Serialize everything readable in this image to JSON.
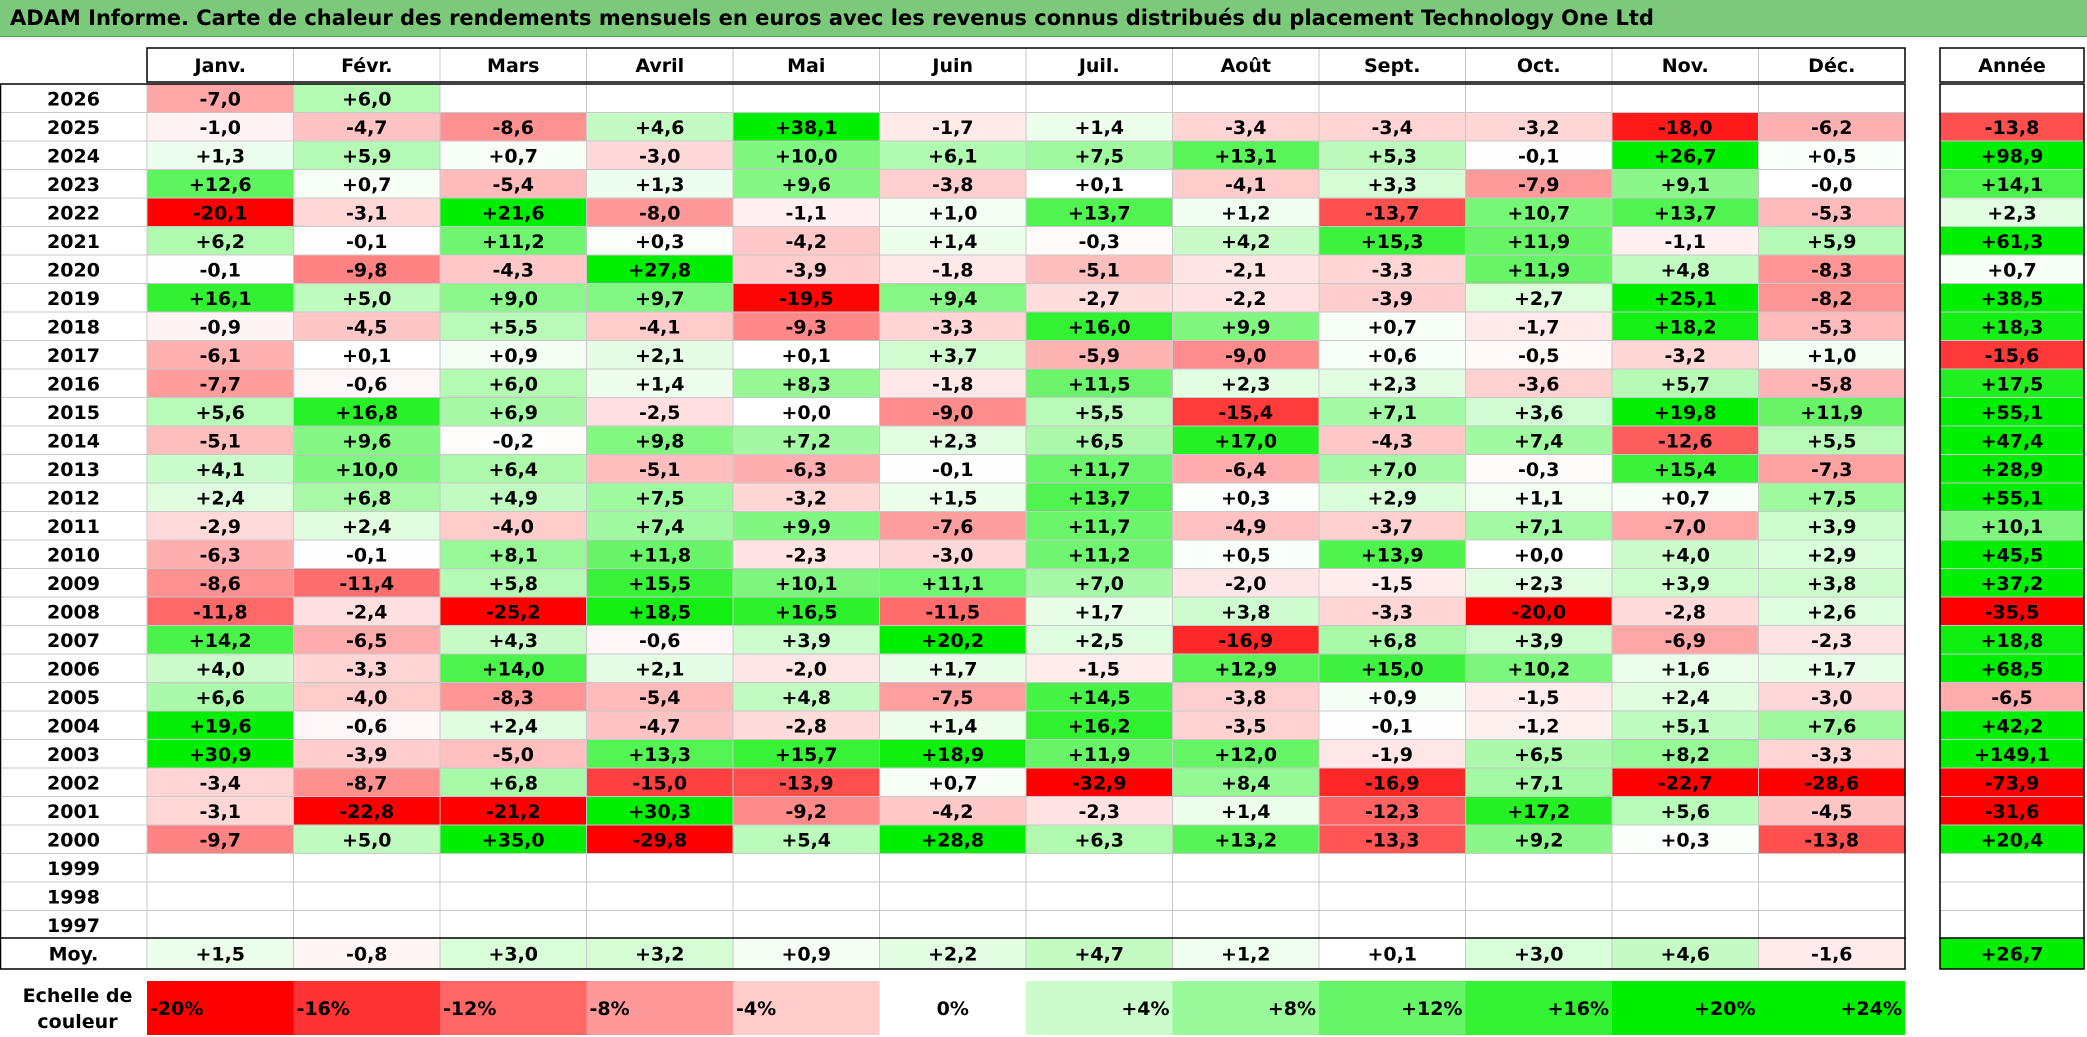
{
  "title": "ADAM Informe. Carte de chaleur des rendements mensuels en euros avec les revenus connus distribués du placement Technology One Ltd",
  "colors": {
    "title_bg": "#7cc97c",
    "max_red": "#ff0000",
    "max_green": "#00ee00",
    "neutral": "#ffffff"
  },
  "chart_data": {
    "type": "heatmap",
    "title": "ADAM Informe. Carte de chaleur des rendements mensuels en euros avec les revenus connus distribués du placement Technology One Ltd",
    "columns": [
      "Janv.",
      "Févr.",
      "Mars",
      "Avril",
      "Mai",
      "Juin",
      "Juil.",
      "Août",
      "Sept.",
      "Oct.",
      "Nov.",
      "Déc."
    ],
    "year_header": "Année",
    "rows": [
      {
        "year": "2026",
        "months": [
          "-7,0",
          "+6,0",
          "",
          "",
          "",
          "",
          "",
          "",
          "",
          "",
          "",
          ""
        ],
        "annual": ""
      },
      {
        "year": "2025",
        "months": [
          "-1,0",
          "-4,7",
          "-8,6",
          "+4,6",
          "+38,1",
          "-1,7",
          "+1,4",
          "-3,4",
          "-3,4",
          "-3,2",
          "-18,0",
          "-6,2"
        ],
        "annual": "-13,8"
      },
      {
        "year": "2024",
        "months": [
          "+1,3",
          "+5,9",
          "+0,7",
          "-3,0",
          "+10,0",
          "+6,1",
          "+7,5",
          "+13,1",
          "+5,3",
          "-0,1",
          "+26,7",
          "+0,5"
        ],
        "annual": "+98,9"
      },
      {
        "year": "2023",
        "months": [
          "+12,6",
          "+0,7",
          "-5,4",
          "+1,3",
          "+9,6",
          "-3,8",
          "+0,1",
          "-4,1",
          "+3,3",
          "-7,9",
          "+9,1",
          "-0,0"
        ],
        "annual": "+14,1"
      },
      {
        "year": "2022",
        "months": [
          "-20,1",
          "-3,1",
          "+21,6",
          "-8,0",
          "-1,1",
          "+1,0",
          "+13,7",
          "+1,2",
          "-13,7",
          "+10,7",
          "+13,7",
          "-5,3"
        ],
        "annual": "+2,3"
      },
      {
        "year": "2021",
        "months": [
          "+6,2",
          "-0,1",
          "+11,2",
          "+0,3",
          "-4,2",
          "+1,4",
          "-0,3",
          "+4,2",
          "+15,3",
          "+11,9",
          "-1,1",
          "+5,9"
        ],
        "annual": "+61,3"
      },
      {
        "year": "2020",
        "months": [
          "-0,1",
          "-9,8",
          "-4,3",
          "+27,8",
          "-3,9",
          "-1,8",
          "-5,1",
          "-2,1",
          "-3,3",
          "+11,9",
          "+4,8",
          "-8,3"
        ],
        "annual": "+0,7"
      },
      {
        "year": "2019",
        "months": [
          "+16,1",
          "+5,0",
          "+9,0",
          "+9,7",
          "-19,5",
          "+9,4",
          "-2,7",
          "-2,2",
          "-3,9",
          "+2,7",
          "+25,1",
          "-8,2"
        ],
        "annual": "+38,5"
      },
      {
        "year": "2018",
        "months": [
          "-0,9",
          "-4,5",
          "+5,5",
          "-4,1",
          "-9,3",
          "-3,3",
          "+16,0",
          "+9,9",
          "+0,7",
          "-1,7",
          "+18,2",
          "-5,3"
        ],
        "annual": "+18,3"
      },
      {
        "year": "2017",
        "months": [
          "-6,1",
          "+0,1",
          "+0,9",
          "+2,1",
          "+0,1",
          "+3,7",
          "-5,9",
          "-9,0",
          "+0,6",
          "-0,5",
          "-3,2",
          "+1,0"
        ],
        "annual": "-15,6"
      },
      {
        "year": "2016",
        "months": [
          "-7,7",
          "-0,6",
          "+6,0",
          "+1,4",
          "+8,3",
          "-1,8",
          "+11,5",
          "+2,3",
          "+2,3",
          "-3,6",
          "+5,7",
          "-5,8"
        ],
        "annual": "+17,5"
      },
      {
        "year": "2015",
        "months": [
          "+5,6",
          "+16,8",
          "+6,9",
          "-2,5",
          "+0,0",
          "-9,0",
          "+5,5",
          "-15,4",
          "+7,1",
          "+3,6",
          "+19,8",
          "+11,9"
        ],
        "annual": "+55,1"
      },
      {
        "year": "2014",
        "months": [
          "-5,1",
          "+9,6",
          "-0,2",
          "+9,8",
          "+7,2",
          "+2,3",
          "+6,5",
          "+17,0",
          "-4,3",
          "+7,4",
          "-12,6",
          "+5,5"
        ],
        "annual": "+47,4"
      },
      {
        "year": "2013",
        "months": [
          "+4,1",
          "+10,0",
          "+6,4",
          "-5,1",
          "-6,3",
          "-0,1",
          "+11,7",
          "-6,4",
          "+7,0",
          "-0,3",
          "+15,4",
          "-7,3"
        ],
        "annual": "+28,9"
      },
      {
        "year": "2012",
        "months": [
          "+2,4",
          "+6,8",
          "+4,9",
          "+7,5",
          "-3,2",
          "+1,5",
          "+13,7",
          "+0,3",
          "+2,9",
          "+1,1",
          "+0,7",
          "+7,5"
        ],
        "annual": "+55,1"
      },
      {
        "year": "2011",
        "months": [
          "-2,9",
          "+2,4",
          "-4,0",
          "+7,4",
          "+9,9",
          "-7,6",
          "+11,7",
          "-4,9",
          "-3,7",
          "+7,1",
          "-7,0",
          "+3,9"
        ],
        "annual": "+10,1"
      },
      {
        "year": "2010",
        "months": [
          "-6,3",
          "-0,1",
          "+8,1",
          "+11,8",
          "-2,3",
          "-3,0",
          "+11,2",
          "+0,5",
          "+13,9",
          "+0,0",
          "+4,0",
          "+2,9"
        ],
        "annual": "+45,5"
      },
      {
        "year": "2009",
        "months": [
          "-8,6",
          "-11,4",
          "+5,8",
          "+15,5",
          "+10,1",
          "+11,1",
          "+7,0",
          "-2,0",
          "-1,5",
          "+2,3",
          "+3,9",
          "+3,8"
        ],
        "annual": "+37,2"
      },
      {
        "year": "2008",
        "months": [
          "-11,8",
          "-2,4",
          "-25,2",
          "+18,5",
          "+16,5",
          "-11,5",
          "+1,7",
          "+3,8",
          "-3,3",
          "-20,0",
          "-2,8",
          "+2,6"
        ],
        "annual": "-35,5"
      },
      {
        "year": "2007",
        "months": [
          "+14,2",
          "-6,5",
          "+4,3",
          "-0,6",
          "+3,9",
          "+20,2",
          "+2,5",
          "-16,9",
          "+6,8",
          "+3,9",
          "-6,9",
          "-2,3"
        ],
        "annual": "+18,8"
      },
      {
        "year": "2006",
        "months": [
          "+4,0",
          "-3,3",
          "+14,0",
          "+2,1",
          "-2,0",
          "+1,7",
          "-1,5",
          "+12,9",
          "+15,0",
          "+10,2",
          "+1,6",
          "+1,7"
        ],
        "annual": "+68,5"
      },
      {
        "year": "2005",
        "months": [
          "+6,6",
          "-4,0",
          "-8,3",
          "-5,4",
          "+4,8",
          "-7,5",
          "+14,5",
          "-3,8",
          "+0,9",
          "-1,5",
          "+2,4",
          "-3,0"
        ],
        "annual": "-6,5"
      },
      {
        "year": "2004",
        "months": [
          "+19,6",
          "-0,6",
          "+2,4",
          "-4,7",
          "-2,8",
          "+1,4",
          "+16,2",
          "-3,5",
          "-0,1",
          "-1,2",
          "+5,1",
          "+7,6"
        ],
        "annual": "+42,2"
      },
      {
        "year": "2003",
        "months": [
          "+30,9",
          "-3,9",
          "-5,0",
          "+13,3",
          "+15,7",
          "+18,9",
          "+11,9",
          "+12,0",
          "-1,9",
          "+6,5",
          "+8,2",
          "-3,3"
        ],
        "annual": "+149,1"
      },
      {
        "year": "2002",
        "months": [
          "-3,4",
          "-8,7",
          "+6,8",
          "-15,0",
          "-13,9",
          "+0,7",
          "-32,9",
          "+8,4",
          "-16,9",
          "+7,1",
          "-22,7",
          "-28,6"
        ],
        "annual": "-73,9"
      },
      {
        "year": "2001",
        "months": [
          "-3,1",
          "-22,8",
          "-21,2",
          "+30,3",
          "-9,2",
          "-4,2",
          "-2,3",
          "+1,4",
          "-12,3",
          "+17,2",
          "+5,6",
          "-4,5"
        ],
        "annual": "-31,6"
      },
      {
        "year": "2000",
        "months": [
          "-9,7",
          "+5,0",
          "+35,0",
          "-29,8",
          "+5,4",
          "+28,8",
          "+6,3",
          "+13,2",
          "-13,3",
          "+9,2",
          "+0,3",
          "-13,8"
        ],
        "annual": "+20,4"
      },
      {
        "year": "1999",
        "months": [
          "",
          "",
          "",
          "",
          "",
          "",
          "",
          "",
          "",
          "",
          "",
          ""
        ],
        "annual": ""
      },
      {
        "year": "1998",
        "months": [
          "",
          "",
          "",
          "",
          "",
          "",
          "",
          "",
          "",
          "",
          "",
          ""
        ],
        "annual": ""
      },
      {
        "year": "1997",
        "months": [
          "",
          "",
          "",
          "",
          "",
          "",
          "",
          "",
          "",
          "",
          "",
          ""
        ],
        "annual": ""
      }
    ],
    "average": {
      "label": "Moy.",
      "months": [
        "+1,5",
        "-0,8",
        "+3,0",
        "+3,2",
        "+0,9",
        "+2,2",
        "+4,7",
        "+1,2",
        "+0,1",
        "+3,0",
        "+4,6",
        "-1,6"
      ],
      "annual": "+26,7"
    },
    "scale": {
      "label_line1": "Echelle de",
      "label_line2": "couleur",
      "steps": [
        {
          "label": "-20%",
          "value": -20
        },
        {
          "label": "-16%",
          "value": -16
        },
        {
          "label": "-12%",
          "value": -12
        },
        {
          "label": "-8%",
          "value": -8
        },
        {
          "label": "-4%",
          "value": -4
        },
        {
          "label": "0%",
          "value": 0
        },
        {
          "label": "+4%",
          "value": 4
        },
        {
          "label": "+8%",
          "value": 8
        },
        {
          "label": "+12%",
          "value": 12
        },
        {
          "label": "+16%",
          "value": 16
        },
        {
          "label": "+20%",
          "value": 20
        },
        {
          "label": "+24%",
          "value": 24
        }
      ]
    }
  }
}
